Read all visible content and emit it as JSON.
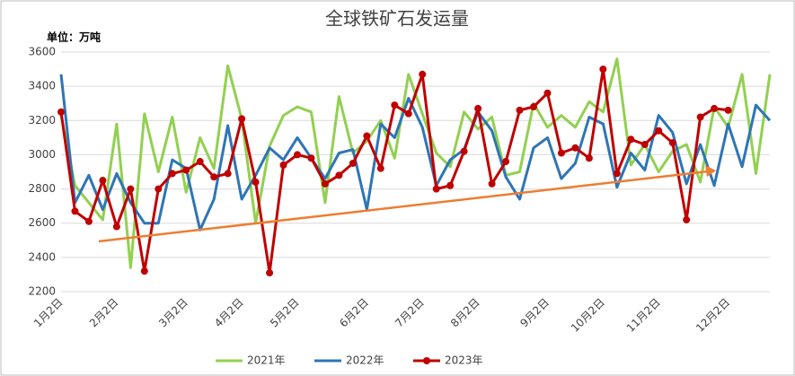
{
  "chart_data": {
    "type": "line",
    "title": "全球铁矿石发运量",
    "unit_label": "单位：万吨",
    "categories": [
      "1月2日",
      null,
      null,
      null,
      "2月2日",
      null,
      null,
      null,
      null,
      "3月2日",
      null,
      null,
      null,
      "4月2日",
      null,
      null,
      null,
      "5月2日",
      null,
      null,
      null,
      null,
      "6月2日",
      null,
      null,
      null,
      "7月2日",
      null,
      null,
      null,
      "8月2日",
      null,
      null,
      null,
      null,
      "9月2日",
      null,
      null,
      null,
      "10月2日",
      null,
      null,
      null,
      "11月2日",
      null,
      null,
      null,
      null,
      "12月2日",
      null,
      null,
      null
    ],
    "series": [
      {
        "name": "2021年",
        "color": "#92d050",
        "values": [
          3230,
          2820,
          2720,
          2620,
          3180,
          2340,
          3240,
          2900,
          3220,
          2780,
          3100,
          2920,
          3520,
          3210,
          2600,
          3050,
          3230,
          3280,
          3250,
          2720,
          3340,
          3010,
          3080,
          3200,
          2980,
          3470,
          3240,
          3010,
          2930,
          3250,
          3150,
          3220,
          2880,
          2900,
          3300,
          3160,
          3230,
          3160,
          3310,
          3250,
          3560,
          2940,
          3060,
          2900,
          3020,
          3060,
          2840,
          3280,
          3160,
          3470,
          2890,
          3470
        ]
      },
      {
        "name": "2022年",
        "color": "#2e75b6",
        "values": [
          3470,
          2720,
          2880,
          2680,
          2890,
          2720,
          2600,
          2600,
          2970,
          2920,
          2560,
          2740,
          3170,
          2740,
          2880,
          3040,
          2970,
          3100,
          2980,
          2860,
          3010,
          3030,
          2680,
          3180,
          3100,
          3330,
          3160,
          2820,
          2970,
          3030,
          3250,
          3140,
          2870,
          2740,
          3040,
          3100,
          2860,
          2950,
          3220,
          3180,
          2810,
          3010,
          2910,
          3230,
          3130,
          2830,
          3060,
          2820,
          3180,
          2930,
          3290,
          3200
        ]
      },
      {
        "name": "2023年",
        "color": "#c00000",
        "markers": true,
        "values": [
          3250,
          2670,
          2610,
          2850,
          2580,
          2800,
          2320,
          2800,
          2890,
          2910,
          2960,
          2870,
          2890,
          3210,
          2840,
          2310,
          2940,
          3000,
          2980,
          2830,
          2880,
          2950,
          3110,
          2920,
          3290,
          3240,
          3470,
          2800,
          2820,
          3020,
          3270,
          2830,
          2960,
          3260,
          3280,
          3360,
          3010,
          3040,
          2980,
          3500,
          2890,
          3090,
          3060,
          3140,
          3070,
          2620,
          3220,
          3270,
          3260,
          null,
          null,
          null
        ]
      }
    ],
    "ylim": [
      2200,
      3600
    ],
    "yticks": [
      2200,
      2400,
      2600,
      2800,
      3000,
      3200,
      3400,
      3600
    ],
    "grid": true,
    "legend": "bottom"
  }
}
